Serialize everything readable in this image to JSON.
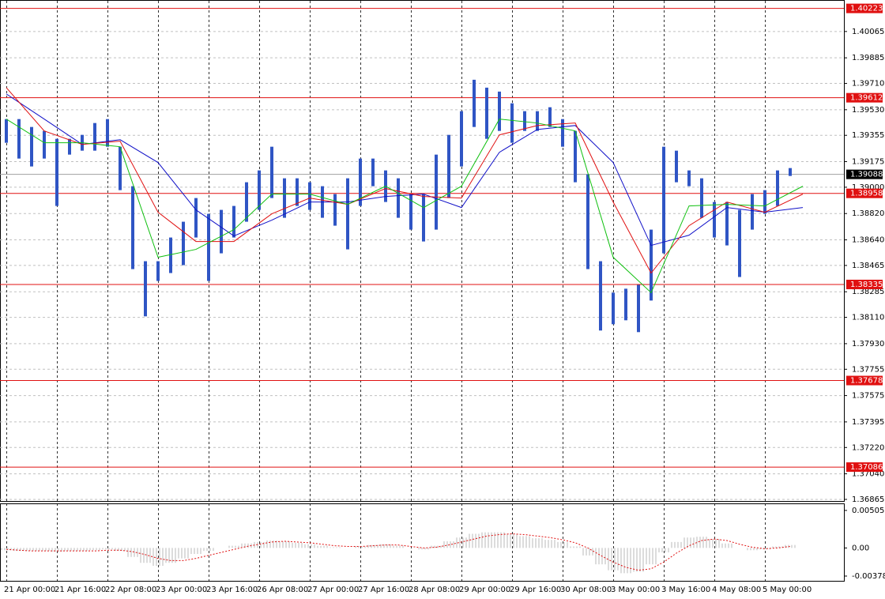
{
  "chart_data": [
    {
      "type": "price",
      "categories": [
        "21 Apr 00:00",
        null,
        null,
        null,
        "21 Apr 16:00",
        null,
        null,
        null,
        "22 Apr 08:00",
        null,
        null,
        null,
        "23 Apr 00:00",
        null,
        null,
        null,
        "23 Apr 16:00",
        null,
        null,
        null,
        "26 Apr 08:00",
        null,
        null,
        null,
        "27 Apr 00:00",
        null,
        null,
        null,
        "27 Apr 16:00",
        null,
        null,
        null,
        "28 Apr 08:00",
        null,
        null,
        null,
        "29 Apr 00:00",
        null,
        null,
        null,
        "29 Apr 16:00",
        null,
        null,
        null,
        "30 Apr 08:00",
        null,
        null,
        null,
        "3 May 00:00",
        null,
        null,
        null,
        "3 May 16:00",
        null,
        null,
        null,
        "4 May 08:00",
        null,
        null,
        null,
        "5 May 00:00",
        null,
        null
      ],
      "high": [
        1.39466,
        1.39466,
        1.39412,
        1.39385,
        1.39331,
        1.39331,
        1.39358,
        1.39439,
        1.39466,
        1.39277,
        1.39007,
        1.38494,
        1.38494,
        1.38656,
        1.38764,
        1.38926,
        1.38818,
        1.38845,
        1.38872,
        1.39034,
        1.39115,
        1.39277,
        1.39061,
        1.39061,
        1.39034,
        1.39007,
        1.38953,
        1.39061,
        1.39196,
        1.39196,
        1.39115,
        1.39061,
        1.38953,
        1.38953,
        1.39223,
        1.39358,
        1.3952,
        1.39735,
        1.39681,
        1.39654,
        1.39574,
        1.3952,
        1.3952,
        1.39547,
        1.39466,
        1.39385,
        1.39088,
        1.38494,
        1.38279,
        1.38306,
        1.38332,
        1.3871,
        1.39277,
        1.3925,
        1.39115,
        1.39061,
        1.38899,
        1.38899,
        1.38845,
        1.38953,
        1.3898,
        1.39115,
        1.39131
      ],
      "low": [
        1.39304,
        1.39196,
        1.39142,
        1.39196,
        1.38872,
        1.39223,
        1.3925,
        1.3925,
        1.39277,
        1.3898,
        1.3844,
        1.38117,
        1.38359,
        1.38413,
        1.38467,
        1.38656,
        1.38359,
        1.38548,
        1.38656,
        1.38764,
        1.38845,
        1.38926,
        1.38791,
        1.38872,
        1.38845,
        1.38791,
        1.38737,
        1.38575,
        1.38872,
        1.39007,
        1.38899,
        1.38791,
        1.3871,
        1.38629,
        1.3871,
        1.38926,
        1.39142,
        1.39412,
        1.39331,
        1.39385,
        1.39304,
        1.39385,
        1.39385,
        1.39412,
        1.39277,
        1.39034,
        1.3844,
        1.3802,
        1.38063,
        1.3809,
        1.38009,
        1.38225,
        1.38548,
        1.39034,
        1.39007,
        1.38791,
        1.38656,
        1.38602,
        1.38386,
        1.3871,
        1.38818,
        1.38872,
        1.39077
      ],
      "color": "#2f55c4",
      "series": [
        {
          "color": "#1010c8",
          "x": [
            0,
            3,
            6,
            9,
            12,
            15,
            18,
            21,
            24,
            27,
            30,
            33,
            36,
            39,
            42,
            45,
            48,
            51,
            54,
            57,
            60,
            63
          ],
          "values": [
            1.39638,
            1.39466,
            1.39293,
            1.39325,
            1.39169,
            1.38845,
            1.38667,
            1.38775,
            1.38899,
            1.38899,
            1.38937,
            1.38953,
            1.38861,
            1.39239,
            1.39395,
            1.39422,
            1.39169,
            1.38602,
            1.38672,
            1.38861,
            1.38829,
            1.38861
          ]
        },
        {
          "color": "#e01010",
          "x": [
            0,
            3,
            6,
            9,
            12,
            15,
            18,
            21,
            24,
            27,
            30,
            33,
            36,
            39,
            42,
            45,
            48,
            51,
            54,
            57,
            60,
            63
          ],
          "values": [
            1.39681,
            1.39385,
            1.39293,
            1.39315,
            1.38829,
            1.38629,
            1.38629,
            1.38818,
            1.38926,
            1.38883,
            1.38991,
            1.38937,
            1.38926,
            1.39358,
            1.39422,
            1.39439,
            1.38899,
            1.38413,
            1.38737,
            1.38899,
            1.38829,
            1.38953
          ]
        },
        {
          "color": "#10c010",
          "x": [
            0,
            3,
            6,
            9,
            12,
            15,
            18,
            21,
            24,
            27,
            30,
            33,
            36,
            39,
            42,
            45,
            48,
            51,
            54,
            57,
            60,
            63
          ],
          "values": [
            1.39466,
            1.39304,
            1.39304,
            1.39277,
            1.38521,
            1.38575,
            1.3871,
            1.38953,
            1.38953,
            1.38883,
            1.39007,
            1.38861,
            1.39007,
            1.39466,
            1.39439,
            1.39385,
            1.38521,
            1.38279,
            1.38872,
            1.38883,
            1.38872,
            1.39007
          ]
        }
      ],
      "levels": [
        1.40223,
        1.39612,
        1.38958,
        1.38335,
        1.37678,
        1.37086
      ],
      "level_color": "#e01010",
      "last_price": 1.39088,
      "ylim": [
        1.36854,
        1.40275
      ],
      "yticks": [
        1.40065,
        1.39885,
        {
          "value": 1.3971,
          "label": "1.39710"
        },
        {
          "value": 1.3953,
          "label": "1.39530"
        },
        1.39355,
        1.39175,
        {
          "value": 1.39,
          "label": "1.39000"
        },
        {
          "value": 1.3882,
          "label": "1.38820"
        },
        {
          "value": 1.3864,
          "label": "1.38640"
        },
        1.38465,
        1.38285,
        {
          "value": 1.3811,
          "label": "1.38110"
        },
        {
          "value": 1.3793,
          "label": "1.37930"
        },
        1.37755,
        1.37575,
        1.37395,
        {
          "value": 1.3722,
          "label": "1.37220"
        },
        {
          "value": 1.3704,
          "label": "1.37040"
        },
        1.36865
      ],
      "grid": true
    },
    {
      "type": "oscillator",
      "values": [
        -0.0003,
        -0.0004,
        -0.0004,
        -0.0004,
        -0.0005,
        -0.0004,
        -0.0004,
        -0.0003,
        -0.0002,
        -0.0004,
        -0.0012,
        -0.002,
        -0.0024,
        -0.002,
        -0.0014,
        -0.0008,
        -0.0004,
        0,
        0.0003,
        0.0006,
        0.0008,
        0.001,
        0.0009,
        0.0007,
        0.0005,
        0.0003,
        0.0001,
        0,
        0.0002,
        0.0004,
        0.0005,
        0.0003,
        0,
        -0.0002,
        0.0003,
        0.0009,
        0.0014,
        0.0019,
        0.0021,
        0.0021,
        0.0019,
        0.0016,
        0.0013,
        0.0011,
        0.0008,
        0.0002,
        -0.001,
        -0.0022,
        -0.003,
        -0.0034,
        -0.0032,
        -0.0022,
        -0.0006,
        0.0008,
        0.0014,
        0.0015,
        0.0012,
        0.0006,
        0,
        -0.0003,
        -0.0002,
        0.0002,
        0.0004
      ],
      "color": "#b8b8b8",
      "signal": [
        -0.0002,
        -0.0003,
        -0.0004,
        -0.0004,
        -0.0004,
        -0.0004,
        -0.0004,
        -0.0004,
        -0.0003,
        -0.0003,
        -0.0005,
        -0.0009,
        -0.0014,
        -0.0017,
        -0.0017,
        -0.0014,
        -0.001,
        -0.0006,
        -0.0002,
        0.0002,
        0.0005,
        0.0008,
        0.0009,
        0.0008,
        0.0007,
        0.0005,
        0.0003,
        0.0002,
        0.0002,
        0.0003,
        0.0004,
        0.0004,
        0.0002,
        0,
        0.0001,
        0.0004,
        0.0008,
        0.0012,
        0.0016,
        0.0018,
        0.0019,
        0.0018,
        0.0016,
        0.0014,
        0.0011,
        0.0007,
        0,
        -0.001,
        -0.0019,
        -0.0026,
        -0.003,
        -0.0028,
        -0.0019,
        -0.0007,
        0.0003,
        0.001,
        0.0012,
        0.001,
        0.0005,
        0.0001,
        -0.0001,
        0,
        0.0002
      ],
      "signal_color": "#e01010",
      "ylim": [
        -0.00442,
        0.00589
      ],
      "yticks": [
        0.00505,
        {
          "value": 0,
          "label": "0.00"
        },
        -0.00378
      ]
    }
  ]
}
